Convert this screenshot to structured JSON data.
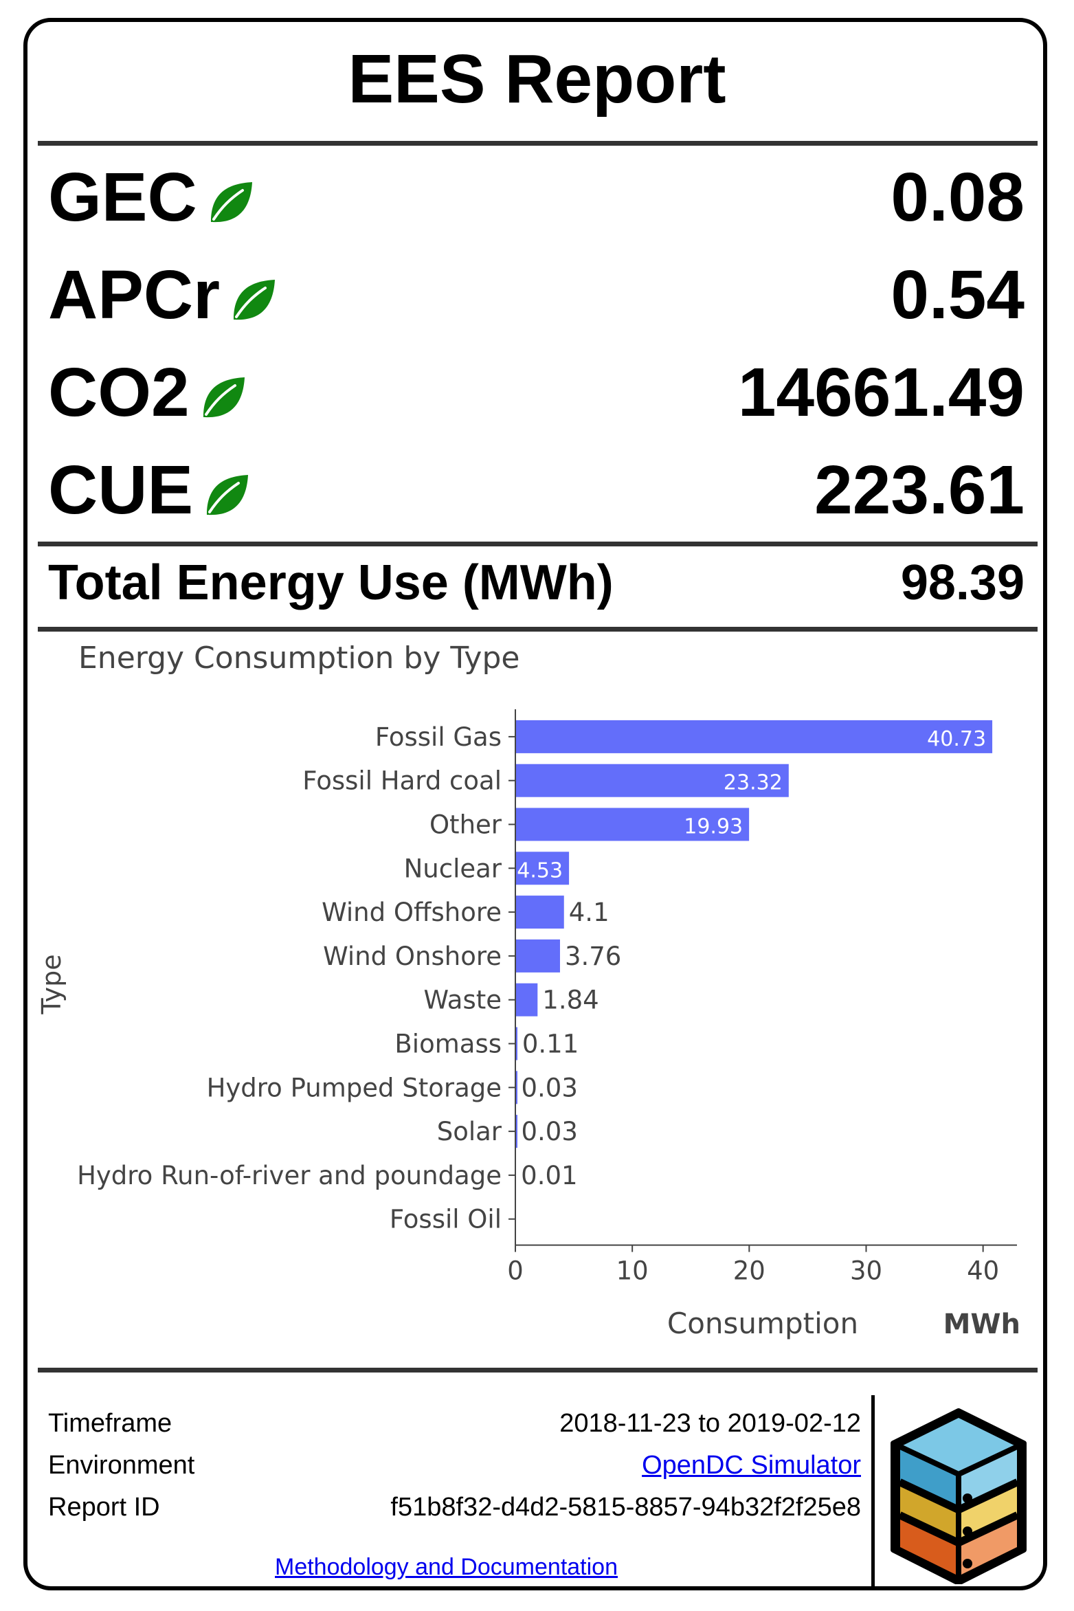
{
  "report": {
    "title": "EES Report",
    "metrics": [
      {
        "label": "GEC",
        "value": "0.08",
        "icon": "leaf-icon"
      },
      {
        "label": "APCr",
        "value": "0.54",
        "icon": "leaf-icon"
      },
      {
        "label": "CO2",
        "value": "14661.49",
        "icon": "leaf-icon"
      },
      {
        "label": "CUE",
        "value": "223.61",
        "icon": "leaf-icon"
      }
    ],
    "total": {
      "label": "Total Energy Use (MWh)",
      "value": "98.39"
    }
  },
  "colors": {
    "bar": "#636efa",
    "leaf": "#118811",
    "rule": "#333333"
  },
  "chart_data": {
    "type": "bar",
    "orientation": "horizontal",
    "title": "Energy Consumption by Type",
    "ylabel": "Type",
    "xlabel": "Consumption",
    "unit": "MWh",
    "categories": [
      "Fossil Gas",
      "Fossil Hard coal",
      "Other",
      "Nuclear",
      "Wind Offshore",
      "Wind Onshore",
      "Waste",
      "Biomass",
      "Hydro Pumped Storage",
      "Solar",
      "Hydro Run-of-river and poundage",
      "Fossil Oil"
    ],
    "values": [
      40.73,
      23.32,
      19.93,
      4.53,
      4.1,
      3.76,
      1.84,
      0.11,
      0.03,
      0.03,
      0.01,
      0
    ],
    "value_labels": [
      "40.73",
      "23.32",
      "19.93",
      "4.53",
      "4.1",
      "3.76",
      "1.84",
      "0.11",
      "0.03",
      "0.03",
      "0.01",
      ""
    ],
    "xticks": [
      0,
      10,
      20,
      30,
      40
    ],
    "xlim": [
      0,
      42.9
    ]
  },
  "footer": {
    "timeframe_label": "Timeframe",
    "timeframe_value": "2018-11-23 to 2019-02-12",
    "environment_label": "Environment",
    "environment_value": "OpenDC Simulator",
    "report_id_label": "Report ID",
    "report_id_value": "f51b8f32-d4d2-5815-8857-94b32f2f25e8",
    "methodology_link": "Methodology and Documentation",
    "logo_icon": "opendc-cube-logo"
  }
}
